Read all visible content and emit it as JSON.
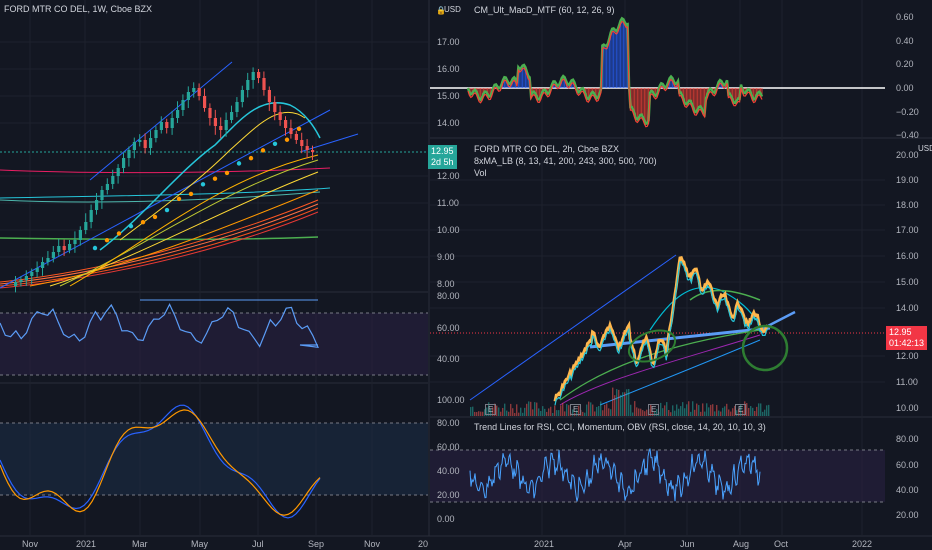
{
  "colors": {
    "background": "#131722",
    "grid": "#1e222d",
    "divider": "#2a2e39",
    "up": "#26a69a",
    "down": "#ef5350",
    "rsi_line": "#5b9cf6",
    "stoch_k": "#2962ff",
    "stoch_d": "#ff9800",
    "price_badge": "#26a69a",
    "price_badge_2": "#f23645",
    "trendline": "#2962ff"
  },
  "left_chart": {
    "title": "FORD MTR CO DEL, 1W, Cboe BZX",
    "price_badge": {
      "price": "12.95",
      "time": "2d 5h"
    },
    "x_labels": [
      "Nov",
      "2021",
      "Mar",
      "May",
      "Jul",
      "Sep",
      "Nov",
      "20"
    ]
  },
  "price_axis": {
    "currency": "USD",
    "ticks": [
      "17.00",
      "16.00",
      "15.00",
      "14.00",
      "13.00",
      "12.00",
      "11.00",
      "10.00",
      "9.00",
      "8.00"
    ]
  },
  "rsi_axis": {
    "ticks": [
      "80.00",
      "60.00",
      "40.00"
    ]
  },
  "stoch_axis": {
    "ticks": [
      "100.00",
      "80.00",
      "60.00",
      "40.00",
      "20.00",
      "0.00"
    ]
  },
  "macd_panel": {
    "title": "CM_Ult_MacD_MTF (60, 12, 26, 9)",
    "currency": "USD",
    "ticks": [
      "0.60",
      "0.40",
      "0.20",
      "0.00",
      "−0.20",
      "−0.40"
    ],
    "icon": "lock-icon"
  },
  "right_chart": {
    "title": "FORD MTR CO DEL, 2h, Cboe BZX",
    "indicator": "8xMA_LB (8, 13, 41, 200, 243, 300, 500, 700)",
    "volume_label": "Vol",
    "currency": "USD",
    "ticks": [
      "20.00",
      "19.00",
      "18.00",
      "17.00",
      "16.00",
      "15.00",
      "14.00",
      "13.00",
      "12.00",
      "11.00",
      "10.00"
    ],
    "price_badge": {
      "price": "12.95",
      "time": "01:42:13"
    },
    "earnings_marker": "E"
  },
  "right_rsi": {
    "title": "Trend Lines for RSI, CCI, Momentum, OBV (RSI, close, 14, 20, 10, 10, 3)",
    "ticks": [
      "80.00",
      "60.00",
      "40.00",
      "20.00"
    ]
  },
  "right_x_labels": [
    "2021",
    "Apr",
    "Jun",
    "Aug",
    "Oct",
    "2022"
  ]
}
